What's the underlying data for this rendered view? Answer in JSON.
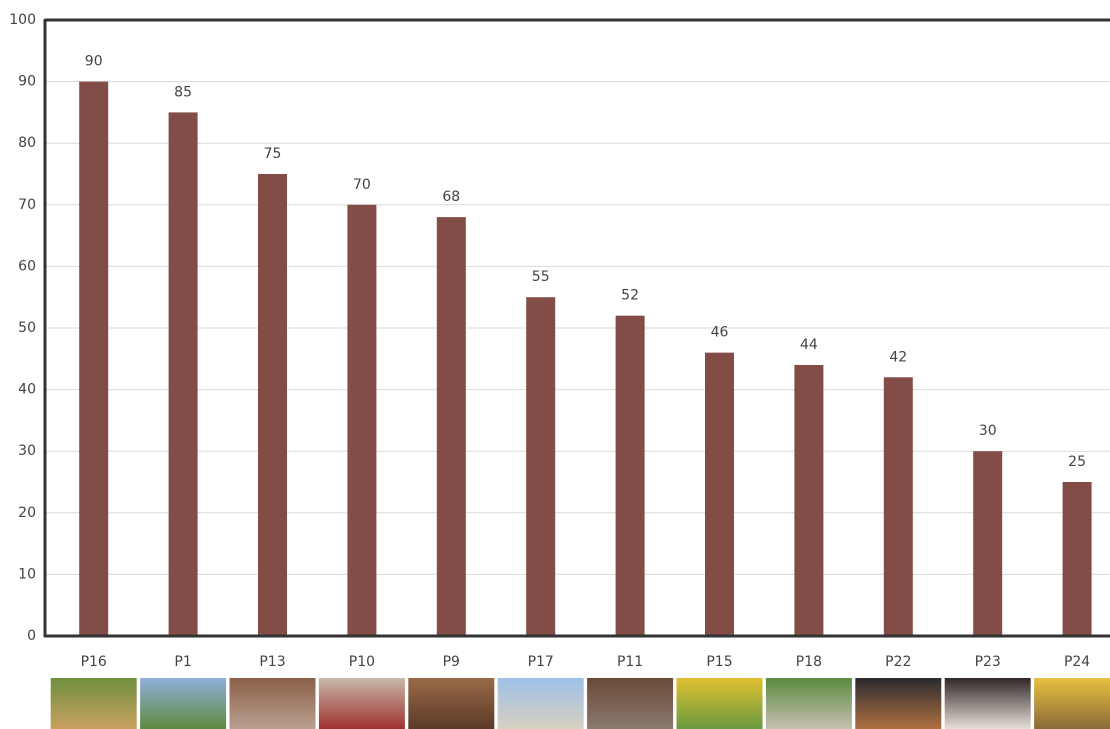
{
  "chart_data": {
    "type": "bar",
    "categories": [
      "P16",
      "P1",
      "P13",
      "P10",
      "P9",
      "P17",
      "P11",
      "P15",
      "P18",
      "P22",
      "P23",
      "P24"
    ],
    "values": [
      90,
      85,
      75,
      70,
      68,
      55,
      52,
      46,
      44,
      42,
      30,
      25
    ],
    "color": "#824c47",
    "ylim": [
      0,
      100
    ],
    "yticks": [
      0,
      10,
      20,
      30,
      40,
      50,
      60,
      70,
      80,
      90,
      100
    ],
    "grid": true
  }
}
